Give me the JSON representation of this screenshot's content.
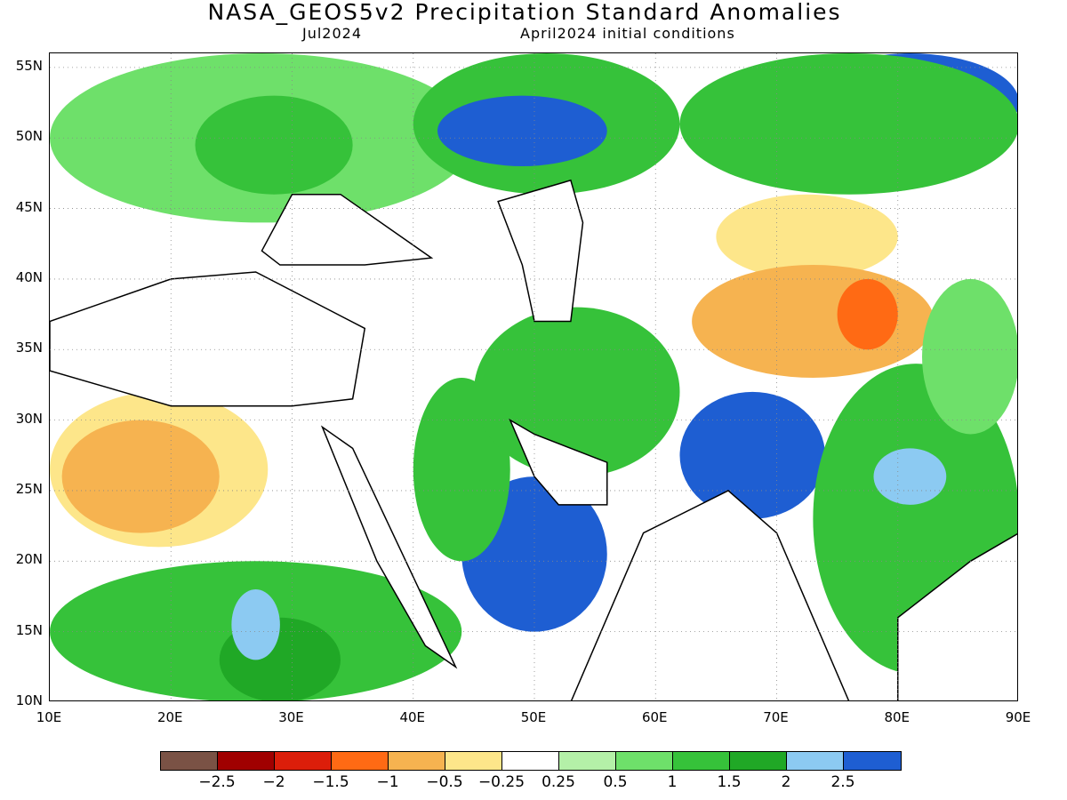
{
  "title": "NASA_GEOS5v2 Precipitation Standard Anomalies",
  "subtitle_left": "Jul2024",
  "subtitle_right": "April2024 initial conditions",
  "axes": {
    "lat_labels": [
      "55N",
      "50N",
      "45N",
      "40N",
      "35N",
      "30N",
      "25N",
      "20N",
      "15N",
      "10N"
    ],
    "lon_labels": [
      "10E",
      "20E",
      "30E",
      "40E",
      "50E",
      "60E",
      "70E",
      "80E",
      "90E"
    ],
    "lon_range": [
      10,
      90
    ],
    "lat_range": [
      10,
      56
    ]
  },
  "colorbar": {
    "colors": [
      "#7a5245",
      "#a00000",
      "#dc1e0a",
      "#ff6a14",
      "#f6b350",
      "#fde68a",
      "#ffffff",
      "#b4f0a8",
      "#6ee06a",
      "#36c23a",
      "#20a826",
      "#8ccaf2",
      "#1e5ed2"
    ],
    "labels": [
      "−2.5",
      "−2",
      "−1.5",
      "−1",
      "−0.5",
      "−0.25",
      "0.25",
      "0.5",
      "1",
      "1.5",
      "2",
      "2.5"
    ]
  },
  "regions": [
    {
      "name": "n-africa-dry",
      "color": "#fde68a",
      "lon": [
        10,
        28
      ],
      "lat": [
        21,
        32
      ]
    },
    {
      "name": "n-africa-dry-core",
      "color": "#f6b350",
      "lon": [
        11,
        24
      ],
      "lat": [
        22,
        30
      ]
    },
    {
      "name": "sahel-wet",
      "color": "#36c23a",
      "lon": [
        10,
        44
      ],
      "lat": [
        10,
        20
      ]
    },
    {
      "name": "sahel-wetter",
      "color": "#20a826",
      "lon": [
        24,
        34
      ],
      "lat": [
        10,
        16
      ]
    },
    {
      "name": "sahel-blue",
      "color": "#8ccaf2",
      "lon": [
        25,
        29
      ],
      "lat": [
        13,
        18
      ]
    },
    {
      "name": "europe-wet",
      "color": "#6ee06a",
      "lon": [
        10,
        45
      ],
      "lat": [
        44,
        56
      ]
    },
    {
      "name": "europe-core",
      "color": "#36c23a",
      "lon": [
        22,
        35
      ],
      "lat": [
        46,
        53
      ]
    },
    {
      "name": "russia-wet",
      "color": "#36c23a",
      "lon": [
        40,
        62
      ],
      "lat": [
        46,
        56
      ]
    },
    {
      "name": "russia-blue",
      "color": "#1e5ed2",
      "lon": [
        42,
        56
      ],
      "lat": [
        48,
        53
      ]
    },
    {
      "name": "siberia-blue",
      "color": "#1e5ed2",
      "lon": [
        72,
        90
      ],
      "lat": [
        49,
        56
      ]
    },
    {
      "name": "siberia-green",
      "color": "#36c23a",
      "lon": [
        62,
        90
      ],
      "lat": [
        46,
        56
      ]
    },
    {
      "name": "kazakh-pale",
      "color": "#fde68a",
      "lon": [
        65,
        80
      ],
      "lat": [
        40,
        46
      ]
    },
    {
      "name": "central-asia-orange",
      "color": "#f6b350",
      "lon": [
        63,
        83
      ],
      "lat": [
        33,
        41
      ]
    },
    {
      "name": "karakoram-orange",
      "color": "#ff6a14",
      "lon": [
        75,
        80
      ],
      "lat": [
        35,
        40
      ]
    },
    {
      "name": "arabia-blue",
      "color": "#1e5ed2",
      "lon": [
        44,
        56
      ],
      "lat": [
        15,
        26
      ]
    },
    {
      "name": "arabia-green",
      "color": "#36c23a",
      "lon": [
        40,
        48
      ],
      "lat": [
        20,
        33
      ]
    },
    {
      "name": "iran-green",
      "color": "#36c23a",
      "lon": [
        45,
        62
      ],
      "lat": [
        26,
        38
      ]
    },
    {
      "name": "pakistan-blue",
      "color": "#1e5ed2",
      "lon": [
        62,
        74
      ],
      "lat": [
        23,
        32
      ]
    },
    {
      "name": "india-green",
      "color": "#36c23a",
      "lon": [
        73,
        90
      ],
      "lat": [
        12,
        34
      ]
    },
    {
      "name": "india-east-blue",
      "color": "#8ccaf2",
      "lon": [
        78,
        84
      ],
      "lat": [
        24,
        28
      ]
    },
    {
      "name": "tibet-green",
      "color": "#6ee06a",
      "lon": [
        82,
        90
      ],
      "lat": [
        29,
        40
      ]
    }
  ]
}
